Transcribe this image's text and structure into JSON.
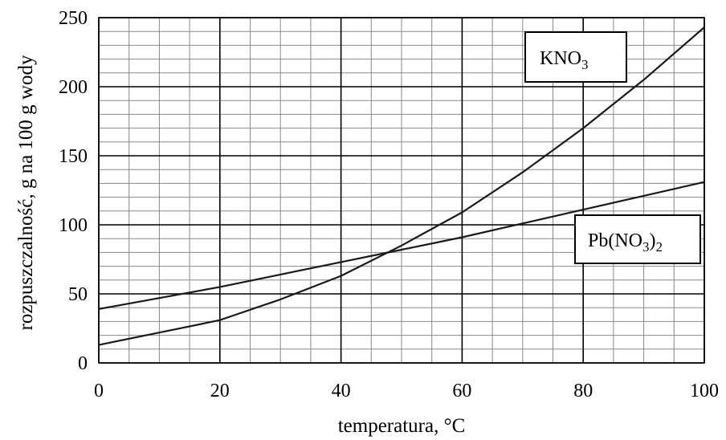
{
  "chart_data": {
    "type": "line",
    "xlabel": "temperatura, °C",
    "ylabel": "rozpuszczalność, g na 100 g wody",
    "xlim": [
      0,
      100
    ],
    "ylim": [
      0,
      250
    ],
    "x_ticks": [
      "0",
      "20",
      "40",
      "60",
      "80",
      "100"
    ],
    "y_ticks": [
      "0",
      "50",
      "100",
      "150",
      "200",
      "250"
    ],
    "grid": true,
    "series": [
      {
        "name": "KNO3",
        "label_main": "KNO",
        "label_sub": "3",
        "label_tail": "",
        "label_tail_sub": "",
        "x": [
          0,
          10,
          20,
          22,
          30,
          40,
          50,
          60,
          70,
          80,
          90,
          100
        ],
        "y": [
          13,
          22,
          31,
          34,
          46,
          63,
          85,
          109,
          138,
          170,
          205,
          243
        ]
      },
      {
        "name": "Pb(NO3)2",
        "label_main": "Pb(NO",
        "label_sub": "3",
        "label_tail": ")",
        "label_tail_sub": "2",
        "x": [
          0,
          10,
          20,
          30,
          40,
          50,
          60,
          70,
          80,
          90,
          100
        ],
        "y": [
          39,
          47,
          55,
          64,
          73,
          82,
          91,
          101,
          111,
          121,
          131
        ]
      }
    ]
  }
}
